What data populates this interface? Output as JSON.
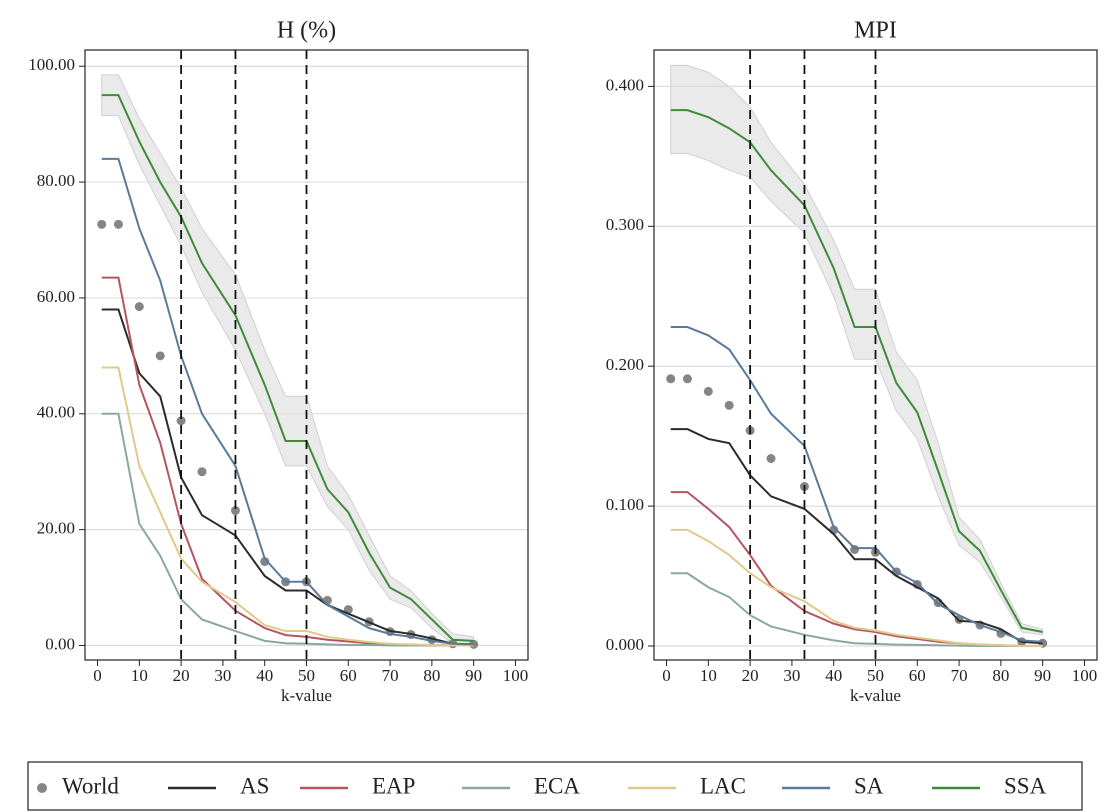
{
  "chart_data": [
    {
      "type": "line",
      "title": "H (%)",
      "x_label": "k-value",
      "legend": "bottom",
      "x": [
        1,
        5,
        10,
        15,
        20,
        25,
        33,
        40,
        45,
        50,
        55,
        60,
        65,
        70,
        75,
        80,
        85,
        90
      ],
      "xlim": [
        -3,
        103
      ],
      "xticks": [
        0,
        10,
        20,
        30,
        40,
        50,
        60,
        70,
        80,
        90,
        100
      ],
      "ylim": [
        -2.5,
        102.8
      ],
      "yticks": [
        {
          "value": 0,
          "label": "0.00"
        },
        {
          "value": 20,
          "label": "20.00"
        },
        {
          "value": 40,
          "label": "40.00"
        },
        {
          "value": 60,
          "label": "60.00"
        },
        {
          "value": 80,
          "label": "80.00"
        },
        {
          "value": 100,
          "label": "100.00"
        }
      ],
      "grid": true,
      "vlines": [
        20,
        33,
        50
      ],
      "series": [
        {
          "name": "World",
          "color": "#858585",
          "style": "dots",
          "values": [
            72.7,
            72.7,
            58.5,
            50,
            38.8,
            30,
            23.3,
            14.5,
            11,
            11,
            7.8,
            6.2,
            4.1,
            2.4,
            1.9,
            1,
            0.3,
            0.2
          ]
        },
        {
          "name": "AS",
          "color": "#2b2b2b",
          "style": "line",
          "values": [
            58,
            58,
            47,
            43,
            29,
            22.5,
            19,
            12,
            9.5,
            9.5,
            7,
            5.5,
            4,
            2.5,
            2,
            1.2,
            0.3,
            0.2
          ]
        },
        {
          "name": "EAP",
          "color": "#b5555d",
          "style": "line",
          "values": [
            63.5,
            63.5,
            45,
            35,
            21,
            11.5,
            6,
            3,
            1.8,
            1.5,
            1,
            0.7,
            0.4,
            0.2,
            0.1,
            0.1,
            0,
            0
          ]
        },
        {
          "name": "ECA",
          "color": "#8aa89e",
          "style": "line",
          "values": [
            40,
            40,
            21,
            15.5,
            8,
            4.5,
            2.5,
            0.8,
            0.4,
            0.3,
            0.2,
            0.1,
            0.1,
            0,
            0,
            0,
            0,
            0
          ]
        },
        {
          "name": "LAC",
          "color": "#e0c98a",
          "style": "line",
          "values": [
            48,
            48,
            31,
            23,
            15,
            11,
            7.5,
            3.5,
            2.5,
            2.5,
            1.5,
            1,
            0.6,
            0.3,
            0.2,
            0.1,
            0,
            0
          ]
        },
        {
          "name": "SA",
          "color": "#5b7a9a",
          "style": "line",
          "values": [
            84,
            84,
            72,
            63,
            50,
            40,
            31,
            15,
            11,
            11,
            7,
            5,
            3,
            2,
            1.5,
            0.8,
            0.3,
            0.2
          ]
        },
        {
          "name": "SSA",
          "color": "#3f8a3b",
          "style": "line",
          "values": [
            95,
            95,
            87,
            80,
            74,
            66,
            57,
            45,
            35.3,
            35.3,
            27,
            23,
            16,
            10,
            8,
            4.5,
            1,
            0.8
          ],
          "upper": [
            98.5,
            98.5,
            91,
            85,
            79,
            72,
            64,
            51,
            43,
            43,
            31,
            26,
            19,
            12,
            9.5,
            5.5,
            2,
            1.5
          ],
          "lower": [
            91.5,
            91.5,
            83,
            76,
            69,
            61,
            51,
            40,
            31,
            31,
            24,
            20,
            13,
            8,
            6.5,
            3,
            0.3,
            0.2
          ]
        }
      ]
    },
    {
      "type": "line",
      "title": "MPI",
      "x_label": "k-value",
      "x": [
        1,
        5,
        10,
        15,
        20,
        25,
        33,
        40,
        45,
        50,
        55,
        60,
        65,
        70,
        75,
        80,
        85,
        90
      ],
      "xlim": [
        -3,
        103
      ],
      "xticks": [
        0,
        10,
        20,
        30,
        40,
        50,
        60,
        70,
        80,
        90,
        100
      ],
      "ylim": [
        -0.01,
        0.426
      ],
      "yticks": [
        {
          "value": 0,
          "label": "0.000"
        },
        {
          "value": 0.1,
          "label": "0.100"
        },
        {
          "value": 0.2,
          "label": "0.200"
        },
        {
          "value": 0.3,
          "label": "0.300"
        },
        {
          "value": 0.4,
          "label": "0.400"
        }
      ],
      "grid": true,
      "vlines": [
        20,
        33,
        50
      ],
      "series": [
        {
          "name": "World",
          "color": "#858585",
          "style": "dots",
          "values": [
            0.191,
            0.191,
            0.182,
            0.172,
            0.154,
            0.134,
            0.114,
            0.083,
            0.069,
            0.067,
            0.053,
            0.044,
            0.031,
            0.019,
            0.015,
            0.009,
            0.003,
            0.002
          ]
        },
        {
          "name": "AS",
          "color": "#2b2b2b",
          "style": "line",
          "values": [
            0.155,
            0.155,
            0.148,
            0.145,
            0.122,
            0.107,
            0.098,
            0.08,
            0.062,
            0.062,
            0.05,
            0.042,
            0.034,
            0.018,
            0.017,
            0.012,
            0.003,
            0.002
          ]
        },
        {
          "name": "EAP",
          "color": "#b5555d",
          "style": "line",
          "values": [
            0.11,
            0.11,
            0.098,
            0.085,
            0.065,
            0.043,
            0.025,
            0.016,
            0.012,
            0.01,
            0.007,
            0.005,
            0.003,
            0.002,
            0.001,
            0.0005,
            0,
            0
          ]
        },
        {
          "name": "ECA",
          "color": "#8aa89e",
          "style": "line",
          "values": [
            0.052,
            0.052,
            0.042,
            0.035,
            0.022,
            0.014,
            0.008,
            0.004,
            0.002,
            0.0015,
            0.001,
            0.0008,
            0.0005,
            0.0003,
            0,
            0,
            0,
            0
          ]
        },
        {
          "name": "LAC",
          "color": "#e0c98a",
          "style": "line",
          "values": [
            0.083,
            0.083,
            0.075,
            0.065,
            0.052,
            0.042,
            0.032,
            0.018,
            0.013,
            0.011,
            0.008,
            0.006,
            0.004,
            0.002,
            0.001,
            0.0005,
            0,
            0
          ]
        },
        {
          "name": "SA",
          "color": "#5b7a9a",
          "style": "line",
          "values": [
            0.228,
            0.228,
            0.222,
            0.212,
            0.19,
            0.166,
            0.143,
            0.085,
            0.07,
            0.07,
            0.053,
            0.045,
            0.03,
            0.022,
            0.015,
            0.01,
            0.004,
            0.003
          ]
        },
        {
          "name": "SSA",
          "color": "#3f8a3b",
          "style": "line",
          "values": [
            0.383,
            0.383,
            0.378,
            0.37,
            0.36,
            0.34,
            0.315,
            0.27,
            0.228,
            0.228,
            0.188,
            0.167,
            0.125,
            0.082,
            0.068,
            0.04,
            0.013,
            0.01
          ],
          "upper": [
            0.415,
            0.415,
            0.41,
            0.4,
            0.385,
            0.36,
            0.33,
            0.29,
            0.255,
            0.255,
            0.21,
            0.19,
            0.145,
            0.092,
            0.076,
            0.045,
            0.016,
            0.012
          ],
          "lower": [
            0.352,
            0.352,
            0.347,
            0.34,
            0.335,
            0.318,
            0.295,
            0.25,
            0.205,
            0.205,
            0.168,
            0.148,
            0.107,
            0.072,
            0.06,
            0.035,
            0.01,
            0.008
          ]
        }
      ]
    }
  ]
}
